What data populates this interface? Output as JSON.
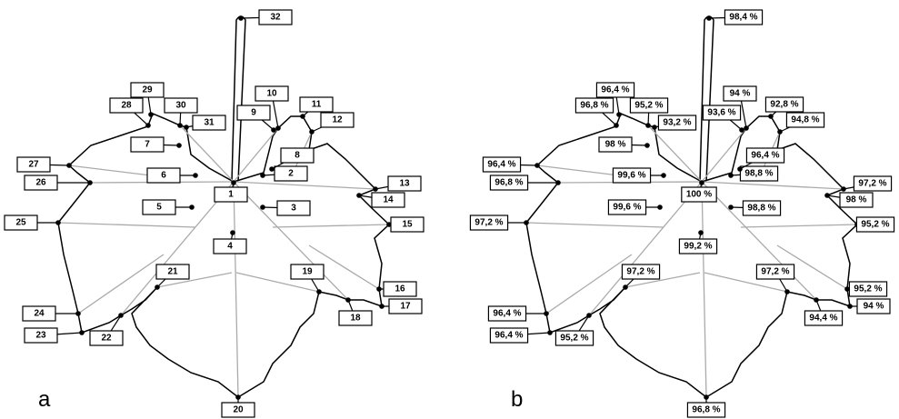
{
  "panels": [
    {
      "label": "a",
      "points": [
        "1",
        "2",
        "3",
        "4",
        "5",
        "6",
        "7",
        "8",
        "9",
        "10",
        "11",
        "12",
        "13",
        "14",
        "15",
        "16",
        "17",
        "18",
        "19",
        "20",
        "21",
        "22",
        "23",
        "24",
        "25",
        "26",
        "27",
        "28",
        "29",
        "30",
        "31",
        "32"
      ]
    },
    {
      "label": "b",
      "points": [
        "100 %",
        "98,8 %",
        "98,8 %",
        "99,2 %",
        "99,6 %",
        "99,6 %",
        "98 %",
        "96,4 %",
        "93,6 %",
        "94 %",
        "92,8 %",
        "94,8 %",
        "97,2 %",
        "98 %",
        "95,2 %",
        "95,2 %",
        "94 %",
        "94,4 %",
        "97,2 %",
        "96,8 %",
        "97,2 %",
        "95,2 %",
        "96,4 %",
        "96,4 %",
        "97,2 %",
        "96,8 %",
        "96,4 %",
        "96,8 %",
        "96,4 %",
        "95,2 %",
        "93,2 %",
        "98,4 %"
      ]
    }
  ]
}
